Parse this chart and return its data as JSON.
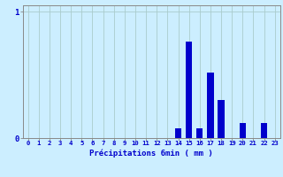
{
  "hours": [
    0,
    1,
    2,
    3,
    4,
    5,
    6,
    7,
    8,
    9,
    10,
    11,
    12,
    13,
    14,
    15,
    16,
    17,
    18,
    19,
    20,
    21,
    22,
    23
  ],
  "values": [
    0,
    0,
    0,
    0,
    0,
    0,
    0,
    0,
    0,
    0,
    0,
    0,
    0,
    0,
    0.08,
    0.76,
    0.08,
    0.52,
    0.3,
    0,
    0.12,
    0,
    0.12,
    0
  ],
  "bar_color": "#0000cc",
  "bg_color": "#cceeff",
  "grid_color": "#aacccc",
  "xlabel": "Précipitations 6min ( mm )",
  "xlabel_color": "#0000cc",
  "ylim": [
    0,
    1.05
  ],
  "xlim": [
    -0.5,
    23.5
  ],
  "tick_color": "#0000cc",
  "axis_color": "#888888",
  "bar_width": 0.6
}
